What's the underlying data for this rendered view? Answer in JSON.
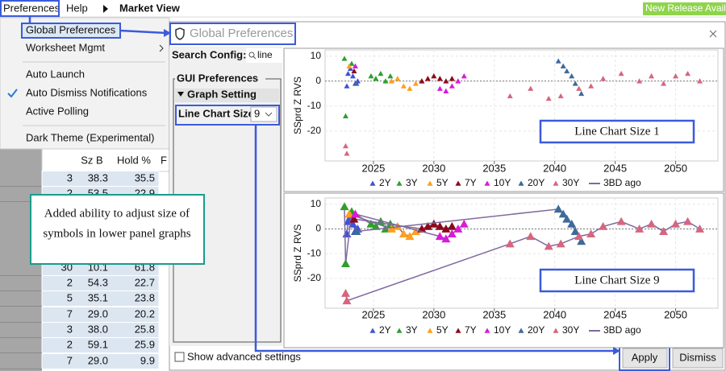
{
  "menu_bar": {
    "items": [
      "Preferences",
      "Help",
      "Market View"
    ],
    "notice": "New Release Availa"
  },
  "menu": {
    "items": [
      "Global Preferences",
      "Worksheet Mgmt",
      "Auto Launch",
      "Auto Dismiss Notifications",
      "Active Polling",
      "Dark Theme (Experimental)"
    ]
  },
  "table": {
    "headers": [
      "Sz B",
      "Hold %",
      "F"
    ],
    "rows": [
      [
        "3",
        "38.3",
        "35.5"
      ],
      [
        "2",
        "53.5",
        "22.9"
      ],
      [
        "30",
        "10.1",
        "61.8"
      ],
      [
        "2",
        "54.3",
        "22.7"
      ],
      [
        "5",
        "35.1",
        "23.8"
      ],
      [
        "7",
        "29.0",
        "20.2"
      ],
      [
        "3",
        "38.0",
        "25.8"
      ],
      [
        "2",
        "59.1",
        "25.9"
      ],
      [
        "7",
        "29.0",
        "9.9"
      ]
    ]
  },
  "callout": {
    "lines": [
      "Added ability to adjust size of",
      "symbols in lower panel graphs"
    ]
  },
  "dialog": {
    "title": "Global Preferences",
    "search_label": "Search Config:",
    "search_value": "line",
    "group": "GUI Preferences",
    "section": "Graph Setting",
    "field_label": "Line Chart Size",
    "field_value": "9",
    "checkbox": "Show advanced settings",
    "buttons": [
      "Apply",
      "Dismiss"
    ]
  },
  "charts": {
    "type": "scatter",
    "y_label": "SSprd Z RVS",
    "ylim": [
      -32,
      12.5
    ],
    "yticks": [
      -20,
      -10,
      0,
      10
    ],
    "xlim": [
      2021,
      2053.5
    ],
    "xticks": [
      2025,
      2030,
      2035,
      2040,
      2045,
      2050
    ],
    "grid": true,
    "series": [
      {
        "name": "2Y",
        "color": "#3f51d6",
        "x": [
          2022.8,
          2022.9,
          2023.1,
          2023.3,
          2023.5,
          2023.7
        ],
        "y": [
          -2,
          3,
          5,
          2,
          -1,
          0
        ]
      },
      {
        "name": "3Y",
        "color": "#2ca02c",
        "x": [
          2022.6,
          2022.7,
          2023.2,
          2024.8,
          2025.2,
          2025.6,
          2026,
          2026.4
        ],
        "y": [
          9,
          -14,
          7,
          2,
          1,
          3,
          0,
          2
        ]
      },
      {
        "name": "5Y",
        "color": "#ff9f1c",
        "x": [
          2023,
          2026.5,
          2027,
          2027.5,
          2028,
          2028.5,
          2029
        ],
        "y": [
          6,
          0,
          1,
          -2,
          -3,
          -1,
          0
        ]
      },
      {
        "name": "7Y",
        "color": "#8b0a1a",
        "x": [
          2023.4,
          2029,
          2029.5,
          2030,
          2030.5,
          2031,
          2031.5
        ],
        "y": [
          4,
          0,
          1,
          2,
          1,
          0,
          1
        ]
      },
      {
        "name": "10Y",
        "color": "#d81bd8",
        "x": [
          2023.5,
          2030.5,
          2031,
          2031.5,
          2032,
          2032.5
        ],
        "y": [
          6,
          -3,
          -4,
          -2,
          0,
          2
        ]
      },
      {
        "name": "20Y",
        "color": "#3e6a99",
        "x": [
          2023.6,
          2040.3,
          2040.7,
          2041,
          2041.4,
          2041.7,
          2042.2
        ],
        "y": [
          -1,
          8,
          6,
          4,
          2,
          -1,
          -5
        ]
      },
      {
        "name": "30Y",
        "color": "#d5667f",
        "x": [
          2022.7,
          2022.8,
          2036.3,
          2038,
          2039.5,
          2040.5,
          2042,
          2043,
          2044,
          2045.5,
          2047,
          2048,
          2049,
          2050,
          2051,
          2052
        ],
        "y": [
          -26,
          -29,
          -6,
          -3,
          -7,
          -6,
          -3,
          -2,
          1,
          3,
          0,
          2,
          -1,
          2,
          3,
          0
        ]
      }
    ],
    "ref_line": {
      "name": "3BD ago",
      "color": "#7f6a9f"
    },
    "panels": [
      {
        "annotation": "Line Chart Size 1"
      },
      {
        "annotation": "Line Chart Size 9"
      }
    ]
  }
}
